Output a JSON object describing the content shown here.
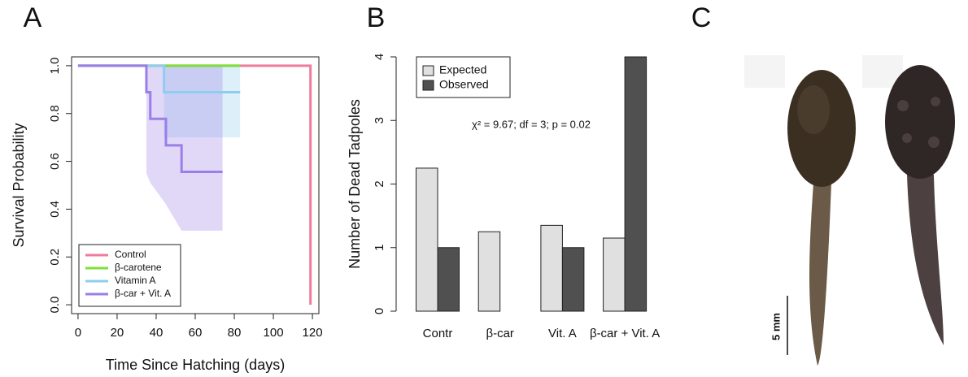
{
  "chart_data": [
    {
      "type": "line",
      "panel_label": "A",
      "xlabel": "Time Since Hatching (days)",
      "ylabel": "Survival Probability",
      "xlim": [
        -3.3,
        123.3
      ],
      "ylim": [
        -0.037,
        1.037
      ],
      "xticks": [
        0,
        20,
        40,
        60,
        80,
        100,
        120
      ],
      "yticks": [
        {
          "value": 0,
          "label": "0.0"
        },
        0.2,
        0.4,
        0.6,
        0.8,
        {
          "value": 1,
          "label": "1.0"
        }
      ],
      "legend": "bottom-left",
      "series": [
        {
          "name": "Control",
          "color": "#ee7d9d",
          "x": [
            0,
            119,
            119
          ],
          "values": [
            1,
            1,
            0
          ]
        },
        {
          "name": "β-carotene",
          "color": "#7ee03a",
          "x": [
            0,
            83
          ],
          "values": [
            1,
            1
          ]
        },
        {
          "name": "Vitamin A",
          "color": "#8ecdf0",
          "x": [
            0,
            44,
            44,
            83
          ],
          "values": [
            1,
            1,
            0.889,
            0.889
          ],
          "ci_x": [
            44,
            83
          ],
          "ci_lower": [
            0.7,
            0.7
          ],
          "ci_upper": [
            1,
            1
          ]
        },
        {
          "name": "β-car + Vit. A",
          "color": "#9b7ee8",
          "x": [
            0,
            35,
            35,
            37,
            37,
            45,
            45,
            53,
            53,
            74
          ],
          "values": [
            1,
            1,
            0.889,
            0.889,
            0.778,
            0.778,
            0.667,
            0.667,
            0.556,
            0.556
          ],
          "ci_x": [
            35,
            37,
            45,
            53,
            74
          ],
          "ci_lower": [
            0.55,
            0.51,
            0.42,
            0.31,
            0.31
          ],
          "ci_upper": [
            1,
            1,
            1,
            1,
            1
          ]
        }
      ]
    },
    {
      "type": "bar",
      "panel_label": "B",
      "ylabel": "Number of Dead Tadpoles",
      "annotation": "χ² = 9.67; df = 3; p = 0.02",
      "categories": [
        "Contr",
        "β-car",
        "Vit. A",
        "β-car + Vit. A"
      ],
      "ylim": [
        0,
        4
      ],
      "yticks": [
        0,
        1,
        2,
        3,
        4
      ],
      "legend": "top-left",
      "series": [
        {
          "name": "Expected",
          "color": "#e0e0e0",
          "values": [
            2.25,
            1.25,
            1.35,
            1.15
          ]
        },
        {
          "name": "Observed",
          "color": "#505050",
          "values": [
            1,
            0,
            1,
            4
          ]
        }
      ]
    }
  ],
  "panel_c": {
    "panel_label": "C",
    "scale_label": "5 mm"
  }
}
